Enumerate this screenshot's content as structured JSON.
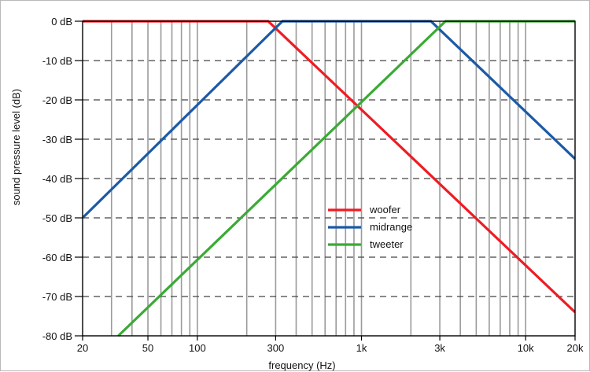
{
  "chart_data": {
    "type": "line",
    "title": "",
    "xlabel": "frequency (Hz)",
    "ylabel": "sound pressure level (dB)",
    "x_scale": "log",
    "xlim": [
      20,
      20000
    ],
    "ylim": [
      -80,
      0
    ],
    "grid": true,
    "legend_placement": "center",
    "x_ticks": [
      {
        "value": 20,
        "label": "20"
      },
      {
        "value": 50,
        "label": "50"
      },
      {
        "value": 100,
        "label": "100"
      },
      {
        "value": 300,
        "label": "300"
      },
      {
        "value": 1000,
        "label": "1k"
      },
      {
        "value": 3000,
        "label": "3k"
      },
      {
        "value": 10000,
        "label": "10k"
      },
      {
        "value": 20000,
        "label": "20k"
      }
    ],
    "y_ticks": [
      {
        "value": 0,
        "label": "0 dB"
      },
      {
        "value": -10,
        "label": "-10 dB"
      },
      {
        "value": -20,
        "label": "-20 dB"
      },
      {
        "value": -30,
        "label": "-30 dB"
      },
      {
        "value": -40,
        "label": "-40 dB"
      },
      {
        "value": -50,
        "label": "-50 dB"
      },
      {
        "value": -60,
        "label": "-60 dB"
      },
      {
        "value": -70,
        "label": "-70 dB"
      },
      {
        "value": -80,
        "label": "-80 dB"
      }
    ],
    "series": [
      {
        "name": "woofer",
        "color": "#ee1c24",
        "points": [
          [
            20,
            0
          ],
          [
            270,
            0
          ],
          [
            20000,
            -74
          ]
        ]
      },
      {
        "name": "midrange",
        "color": "#1c5aa8",
        "points": [
          [
            20,
            -50
          ],
          [
            330,
            0
          ],
          [
            2650,
            0
          ],
          [
            20000,
            -35
          ]
        ]
      },
      {
        "name": "tweeter",
        "color": "#3aaa35",
        "points": [
          [
            33,
            -80
          ],
          [
            3250,
            0
          ],
          [
            20000,
            0
          ]
        ]
      }
    ]
  }
}
